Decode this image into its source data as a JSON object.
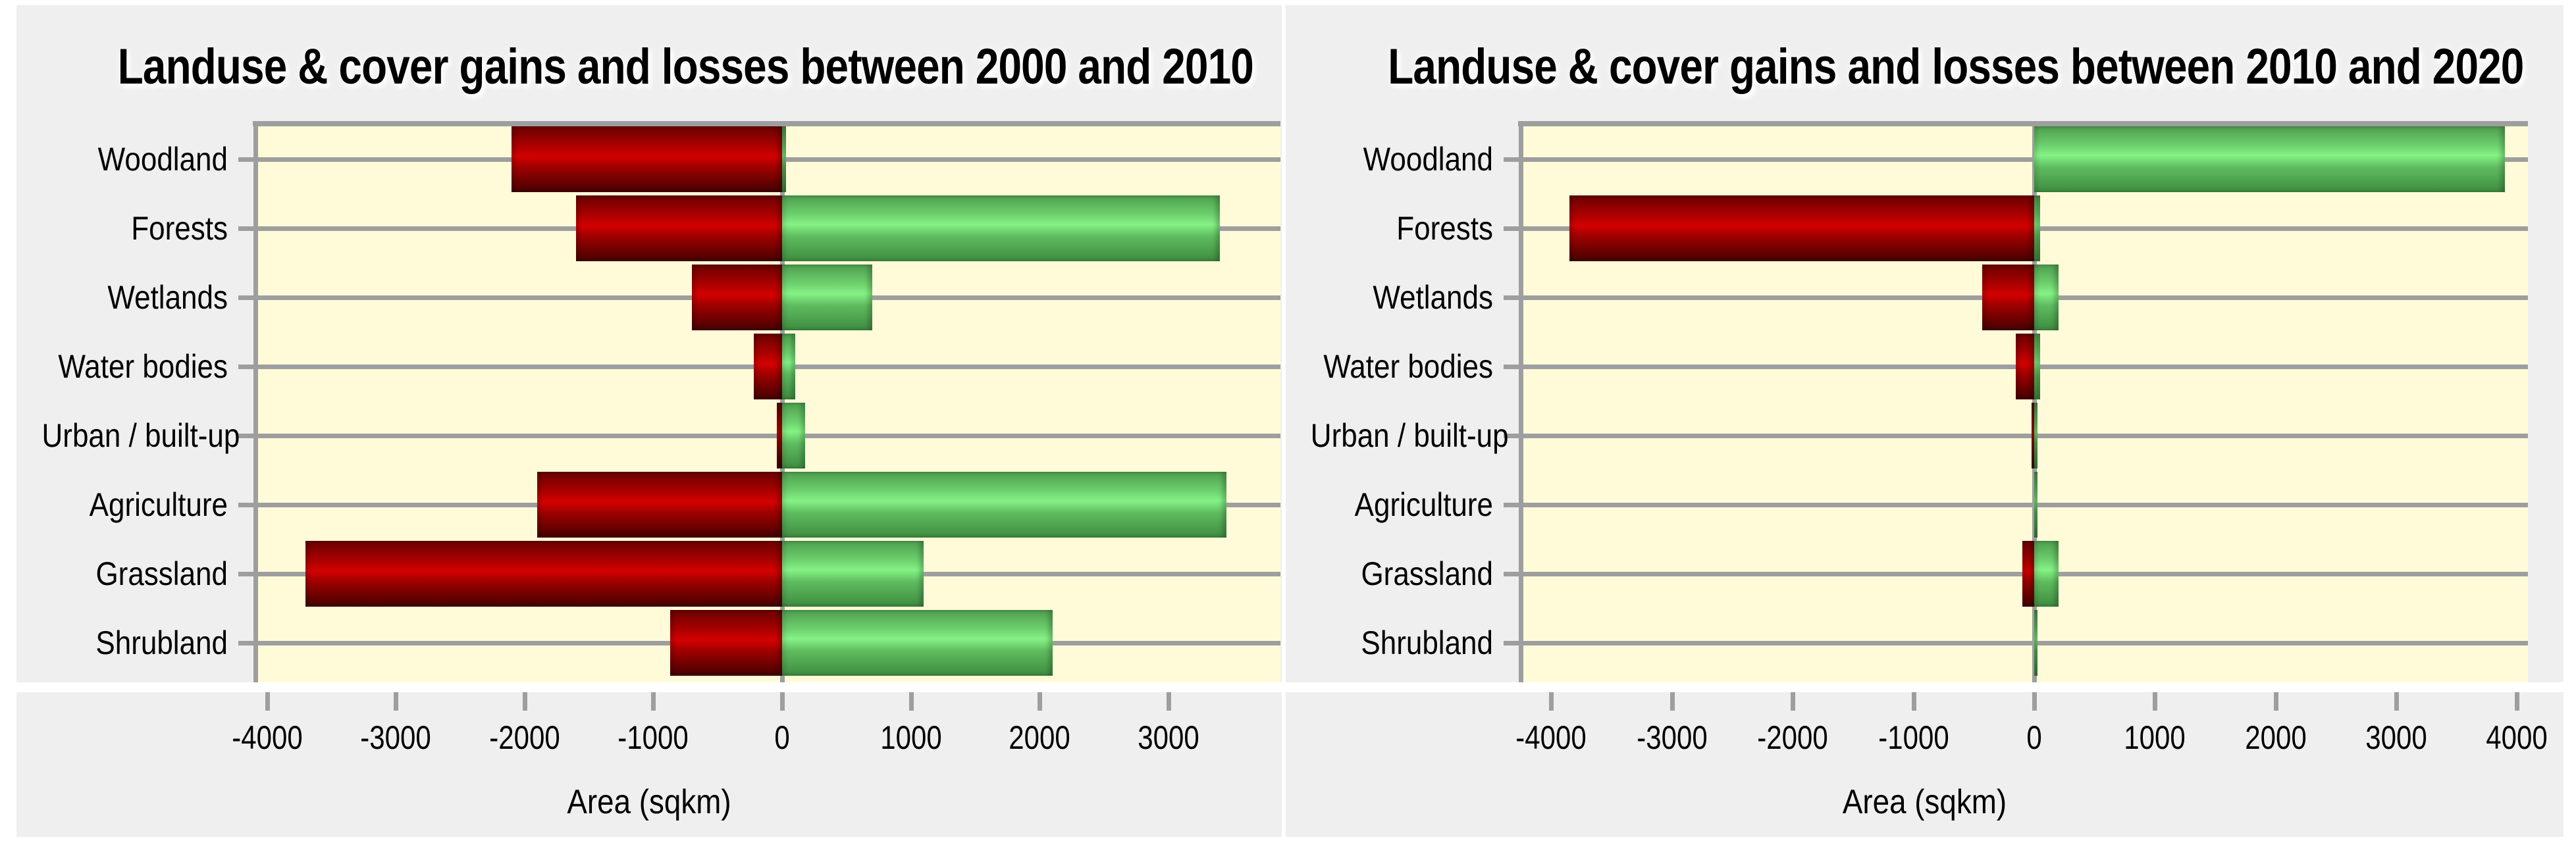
{
  "colors": {
    "page_bg": "#ffffff",
    "panel_bg": "#efefef",
    "plot_bg": "#fffbd9",
    "grid": "#9e9e9e",
    "loss_bar": "#c00000",
    "gain_bar": "#66cc66"
  },
  "chart_data": [
    {
      "type": "bar",
      "orientation": "horizontal-diverging",
      "title": "Landuse & cover gains and losses between 2000 and 2010",
      "xlabel": "Area (sqkm)",
      "categories": [
        "Woodland",
        "Forests",
        "Wetlands",
        "Water bodies",
        "Urban / built-up",
        "Agriculture",
        "Grassland",
        "Shrubland"
      ],
      "series": [
        {
          "name": "Loss",
          "color": "#c00000",
          "values": [
            -2100,
            -1600,
            -700,
            -220,
            -40,
            -1900,
            -3700,
            -870
          ]
        },
        {
          "name": "Gain",
          "color": "#66cc66",
          "values": [
            30,
            3400,
            700,
            100,
            180,
            3450,
            1100,
            2100
          ]
        }
      ],
      "xticks": [
        -4000,
        -3000,
        -2000,
        -1000,
        0,
        1000,
        2000,
        3000
      ],
      "xlim": [
        -4090,
        3870
      ],
      "grid": "category-lines-on",
      "legend": "none"
    },
    {
      "type": "bar",
      "orientation": "horizontal-diverging",
      "title": "Landuse & cover gains and losses between 2010 and 2020",
      "xlabel": "Area (sqkm)",
      "categories": [
        "Woodland",
        "Forests",
        "Wetlands",
        "Water bodies",
        "Urban / built-up",
        "Agriculture",
        "Grassland",
        "Shrubland"
      ],
      "series": [
        {
          "name": "Loss",
          "color": "#c00000",
          "values": [
            0,
            -3850,
            -430,
            -150,
            -20,
            0,
            -100,
            0
          ]
        },
        {
          "name": "Gain",
          "color": "#66cc66",
          "values": [
            3900,
            50,
            200,
            50,
            30,
            30,
            200,
            30
          ]
        }
      ],
      "xticks": [
        -4000,
        -3000,
        -2000,
        -1000,
        0,
        1000,
        2000,
        3000,
        4000
      ],
      "xlim": [
        -4253,
        4090
      ],
      "grid": "category-lines-on",
      "legend": "none"
    }
  ]
}
